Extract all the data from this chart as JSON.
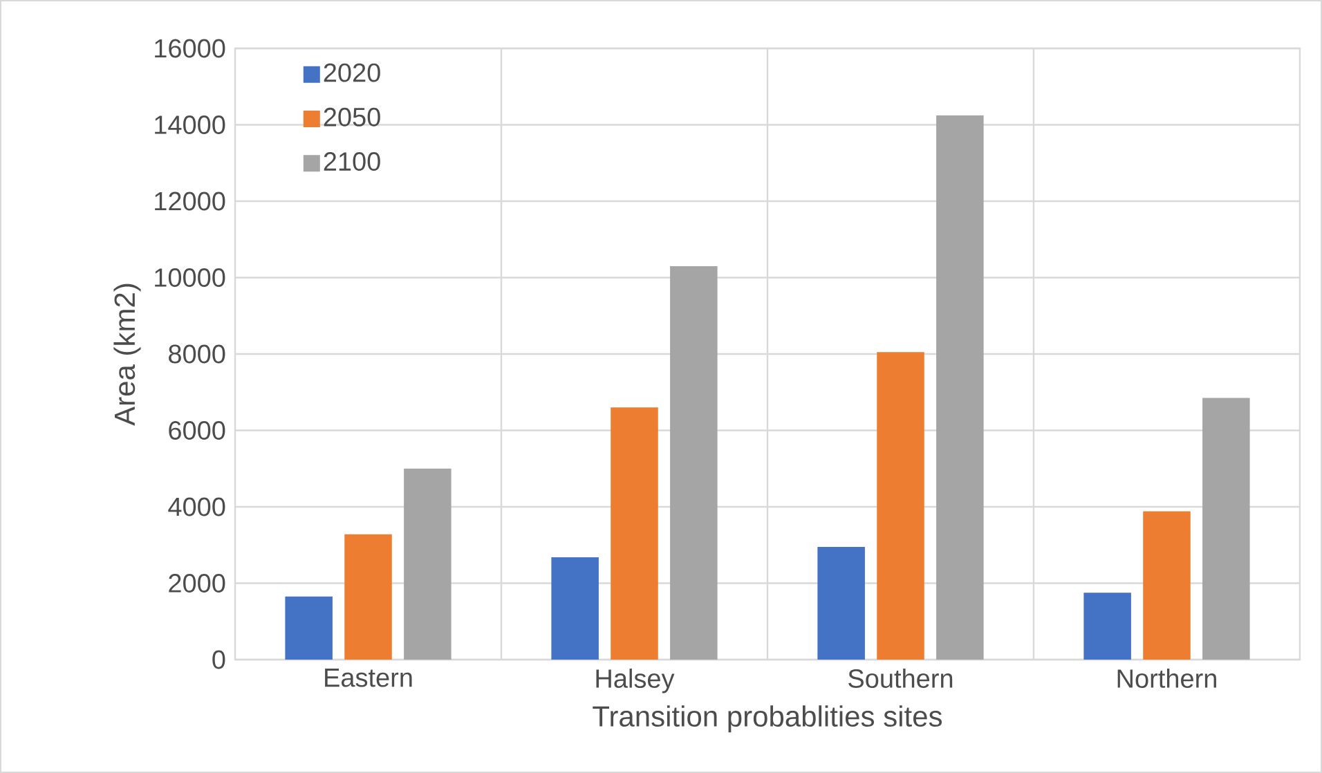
{
  "chart_data": {
    "type": "bar",
    "xlabel": "Transition probablities sites",
    "ylabel": "Area (km2)",
    "categories": [
      "Eastern",
      "Halsey",
      "Southern",
      "Northern"
    ],
    "series": [
      {
        "name": "2020",
        "color": "#4472c4",
        "values": [
          1650,
          2680,
          2950,
          1750
        ]
      },
      {
        "name": "2050",
        "color": "#ed7d31",
        "values": [
          3280,
          6600,
          8050,
          3880
        ]
      },
      {
        "name": "2100",
        "color": "#a5a5a5",
        "values": [
          5000,
          10300,
          14250,
          6850
        ]
      }
    ],
    "ylim": [
      0,
      16000
    ],
    "yticks": [
      0,
      2000,
      4000,
      6000,
      8000,
      10000,
      12000,
      14000,
      16000
    ],
    "grid": true,
    "legend": "top left"
  }
}
